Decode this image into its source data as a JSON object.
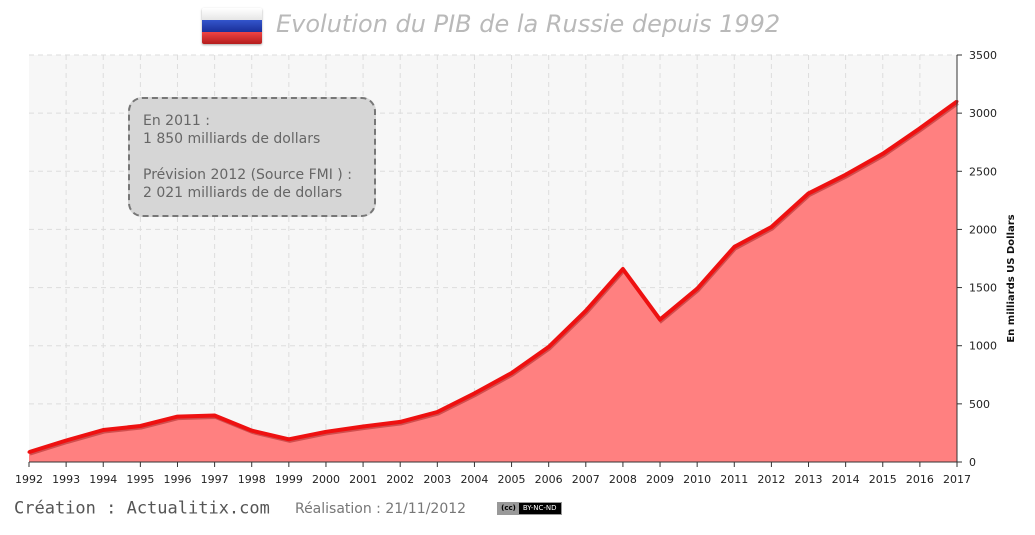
{
  "header": {
    "title": "Evolution du PIB de la Russie depuis 1992",
    "flag_icon": "russia-flag-icon",
    "flag_colors": [
      "#ffffff",
      "#1a2f99",
      "#cc2222"
    ]
  },
  "annotation": {
    "line1": "En 2011 :",
    "line2": "1 850 milliards  de dollars",
    "line3": "Prévision 2012 (Source FMI ) :",
    "line4": "2 021 milliards  de de dollars"
  },
  "footer": {
    "credit": "Création : Actualitix.com",
    "realisation": "Réalisation : 21/11/2012",
    "license_cc": "(cc)",
    "license_text": "BY-NC-ND"
  },
  "colors": {
    "area_fill": "#ff8080",
    "line": "#ee1111",
    "plot_background": "#f7f7f7",
    "grid": "#dddddd"
  },
  "chart_data": {
    "type": "area",
    "title": "Evolution du PIB de la Russie depuis 1992",
    "xlabel": "",
    "ylabel": "En milliards US Dollars",
    "x": [
      1992,
      1993,
      1994,
      1995,
      1996,
      1997,
      1998,
      1999,
      2000,
      2001,
      2002,
      2003,
      2004,
      2005,
      2006,
      2007,
      2008,
      2009,
      2010,
      2011,
      2012,
      2013,
      2014,
      2015,
      2016,
      2017
    ],
    "x_tick_labels": [
      "1992",
      "1993",
      "1994",
      "1995",
      "1996",
      "1997",
      "1998",
      "1999",
      "2000",
      "2001",
      "2002",
      "2003",
      "2004",
      "2005",
      "2006",
      "2007",
      "2008",
      "2009",
      "2010",
      "2011",
      "2012",
      "2013",
      "2014",
      "2015",
      "2016",
      "2017"
    ],
    "series": [
      {
        "values": [
          85,
          185,
          275,
          310,
          390,
          400,
          270,
          195,
          260,
          305,
          345,
          430,
          590,
          765,
          990,
          1300,
          1660,
          1225,
          1490,
          1850,
          2021,
          2310,
          2470,
          2650,
          2870,
          3100
        ]
      }
    ],
    "ylim": [
      0,
      3500
    ],
    "y_ticks": [
      0,
      500,
      1000,
      1500,
      2000,
      2500,
      3000,
      3500
    ],
    "y_axis_side": "right",
    "grid": true,
    "legend": "none"
  }
}
